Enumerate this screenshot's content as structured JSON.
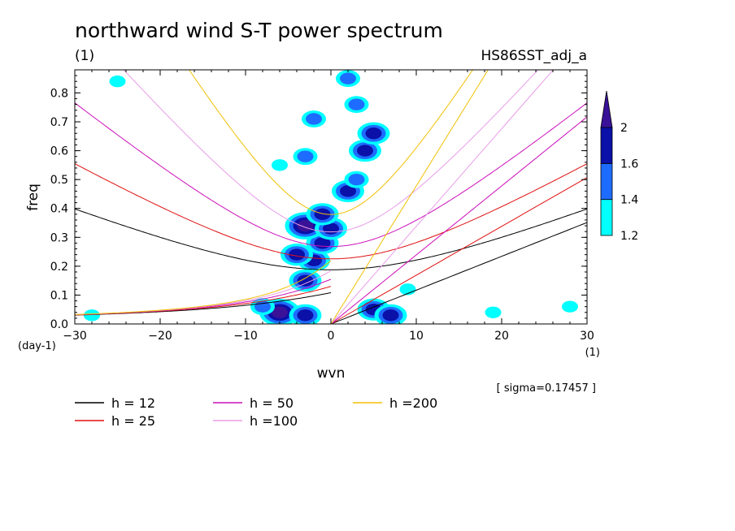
{
  "chart_data": {
    "type": "contour",
    "title": "northward wind S-T power spectrum",
    "subtitle_left": "(1)",
    "subtitle_right": "HS86SST_adj_a",
    "xlabel": "wvn",
    "ylabel": "freq",
    "x_unit": "(1)",
    "y_unit": "(day-1)",
    "xlim": [
      -30,
      30
    ],
    "ylim": [
      0,
      0.88
    ],
    "xticks": [
      -30,
      -20,
      -10,
      0,
      10,
      20,
      30
    ],
    "yticks": [
      0.0,
      0.1,
      0.2,
      0.3,
      0.4,
      0.5,
      0.6,
      0.7,
      0.8
    ],
    "ytick_labels": [
      "0.0",
      "0.1",
      "0.2",
      "0.3",
      "0.4",
      "0.5",
      "0.6",
      "0.7",
      "0.8"
    ],
    "sigma_note": "[ sigma=0.17457 ]",
    "colorbar": {
      "levels": [
        1.2,
        1.4,
        1.6,
        2
      ],
      "labels": [
        "1.2",
        "1.4",
        "1.6",
        "2"
      ],
      "colors": [
        "#00ffff",
        "#1e6cff",
        "#0a10a8",
        "#3a1298"
      ]
    },
    "dispersion_curves": [
      {
        "label": "h = 12",
        "h": 12,
        "color": "#000000"
      },
      {
        "label": "h = 25",
        "h": 25,
        "color": "#e01010"
      },
      {
        "label": "h = 50",
        "h": 50,
        "color": "#cc11bb"
      },
      {
        "label": "h =100",
        "h": 100,
        "color": "#e89de8"
      },
      {
        "label": "h =200",
        "h": 200,
        "color": "#f0c000"
      }
    ],
    "power_blobs": [
      {
        "x": -6,
        "y": 0.04,
        "v": 2.0
      },
      {
        "x": -3,
        "y": 0.03,
        "v": 1.8
      },
      {
        "x": -8,
        "y": 0.06,
        "v": 1.5
      },
      {
        "x": 5,
        "y": 0.05,
        "v": 1.8
      },
      {
        "x": 7,
        "y": 0.03,
        "v": 1.6
      },
      {
        "x": -3,
        "y": 0.15,
        "v": 1.8
      },
      {
        "x": -2,
        "y": 0.22,
        "v": 1.8
      },
      {
        "x": -4,
        "y": 0.24,
        "v": 1.6
      },
      {
        "x": -1,
        "y": 0.28,
        "v": 1.7
      },
      {
        "x": -3,
        "y": 0.34,
        "v": 2.0
      },
      {
        "x": 0,
        "y": 0.33,
        "v": 1.8
      },
      {
        "x": -1,
        "y": 0.38,
        "v": 1.8
      },
      {
        "x": 2,
        "y": 0.46,
        "v": 1.7
      },
      {
        "x": 3,
        "y": 0.5,
        "v": 1.5
      },
      {
        "x": 4,
        "y": 0.6,
        "v": 1.6
      },
      {
        "x": 5,
        "y": 0.66,
        "v": 1.7
      },
      {
        "x": 3,
        "y": 0.76,
        "v": 1.5
      },
      {
        "x": -2,
        "y": 0.71,
        "v": 1.4
      },
      {
        "x": 2,
        "y": 0.85,
        "v": 1.5
      },
      {
        "x": -3,
        "y": 0.58,
        "v": 1.4
      },
      {
        "x": -25,
        "y": 0.84,
        "v": 1.3
      },
      {
        "x": -28,
        "y": 0.03,
        "v": 1.3
      },
      {
        "x": 19,
        "y": 0.04,
        "v": 1.3
      },
      {
        "x": 28,
        "y": 0.06,
        "v": 1.3
      },
      {
        "x": -6,
        "y": 0.55,
        "v": 1.3
      },
      {
        "x": 9,
        "y": 0.12,
        "v": 1.3
      }
    ]
  }
}
